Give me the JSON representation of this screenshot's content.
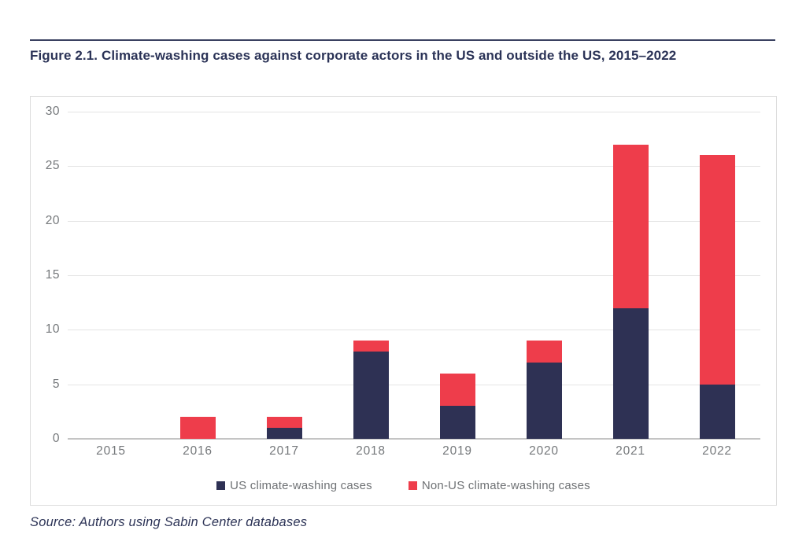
{
  "figure": {
    "title": "Figure 2.1. Climate-washing cases against corporate actors in the US and outside the US, 2015–2022",
    "source": "Source: Authors using Sabin Center databases"
  },
  "colors": {
    "us_series": "#2e3154",
    "non_us_series": "#ee3d4b",
    "title_text": "#2b3357",
    "axis_text": "#75787b",
    "legend_text": "#6f7275",
    "gridline": "#e4e4e4"
  },
  "chart_data": {
    "type": "bar",
    "stacked": true,
    "title": "",
    "xlabel": "",
    "ylabel": "",
    "categories": [
      "2015",
      "2016",
      "2017",
      "2018",
      "2019",
      "2020",
      "2021",
      "2022"
    ],
    "series": [
      {
        "name": "US climate-washing cases",
        "color": "#2e3154",
        "values": [
          0,
          0,
          1,
          8,
          3,
          7,
          12,
          5
        ]
      },
      {
        "name": "Non-US climate-washing cases",
        "color": "#ee3d4b",
        "values": [
          0,
          2,
          1,
          1,
          3,
          2,
          15,
          21
        ]
      }
    ],
    "totals": [
      0,
      2,
      2,
      9,
      6,
      9,
      27,
      26
    ],
    "ylim": [
      0,
      30
    ],
    "yticks": [
      0,
      5,
      10,
      15,
      20,
      25,
      30
    ],
    "grid": true,
    "legend_position": "bottom"
  }
}
